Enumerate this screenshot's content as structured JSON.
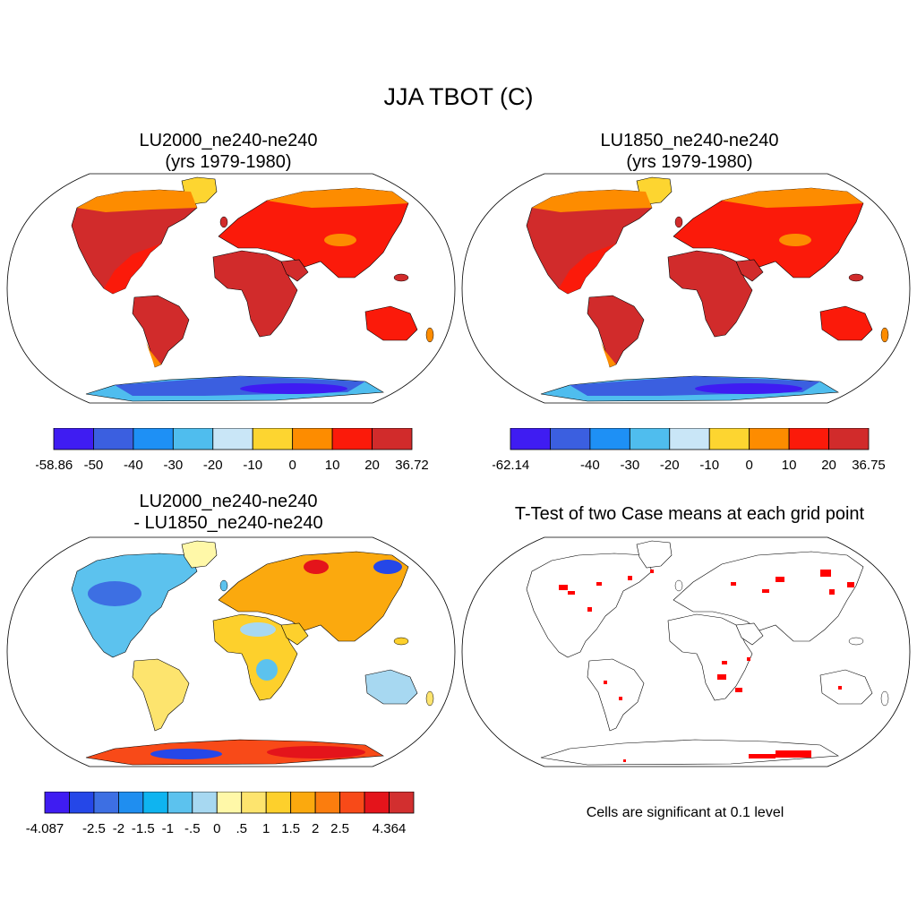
{
  "title": "JJA TBOT (C)",
  "panels": [
    {
      "id": "p1",
      "title_line1": "LU2000_ne240-ne240",
      "title_line2": "(yrs 1979-1980)",
      "colorbar": {
        "colors": [
          "#3f1cf2",
          "#3b5fe0",
          "#1e90f5",
          "#4fbdee",
          "#c9e6f7",
          "#fdd530",
          "#fd8c00",
          "#fb1a0a",
          "#d12b2b"
        ],
        "labels": [
          "-58.86",
          "-50",
          "-40",
          "-30",
          "-20",
          "-10",
          "0",
          "10",
          "20",
          "36.72"
        ]
      }
    },
    {
      "id": "p2",
      "title_line1": "LU1850_ne240-ne240",
      "title_line2": "(yrs 1979-1980)",
      "colorbar": {
        "colors": [
          "#3f1cf2",
          "#3b5fe0",
          "#1e90f5",
          "#4fbdee",
          "#c9e6f7",
          "#fdd530",
          "#fd8c00",
          "#fb1a0a",
          "#d12b2b"
        ],
        "labels": [
          "-62.14",
          "",
          "-40",
          "-30",
          "-20",
          "-10",
          "0",
          "10",
          "20",
          "36.75"
        ]
      }
    },
    {
      "id": "p3",
      "title_line1": "LU2000_ne240-ne240",
      "title_line2": "- LU1850_ne240-ne240",
      "colorbar": {
        "colors": [
          "#3f1cf2",
          "#2547e8",
          "#3d6fe3",
          "#1f8ef0",
          "#0fb4f0",
          "#5cc2ee",
          "#a7d8f1",
          "#fff8a8",
          "#fde46e",
          "#fdd02c",
          "#fba90e",
          "#fb7d0e",
          "#f84a18",
          "#e4141b",
          "#d22f2f"
        ],
        "labels": [
          "-4.087",
          "",
          "-2.5",
          "-2",
          "-1.5",
          "-1",
          "-.5",
          "0",
          ".5",
          "1",
          "1.5",
          "2",
          "2.5",
          "",
          "4.364"
        ]
      }
    },
    {
      "id": "p4",
      "title": "T-Test of two Case means at each grid point",
      "note": "Cells are significant at 0.1 level",
      "significant_color": "#ff0000"
    }
  ]
}
